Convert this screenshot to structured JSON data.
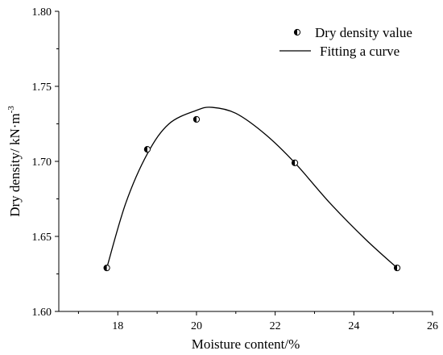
{
  "chart_data": {
    "type": "scatter",
    "title": "",
    "xlabel": "Moisture content/%",
    "ylabel_prefix": "Dry density/ kN·m",
    "ylabel_exponent": "-3",
    "xlim": [
      16.5,
      26
    ],
    "ylim": [
      1.6,
      1.8
    ],
    "xticks": [
      18,
      20,
      22,
      24,
      26
    ],
    "xtick_labels": [
      "18",
      "20",
      "22",
      "24",
      "26"
    ],
    "yticks": [
      1.6,
      1.65,
      1.7,
      1.75,
      1.8
    ],
    "ytick_labels": [
      "1.60",
      "1.65",
      "1.70",
      "1.75",
      "1.80"
    ],
    "grid": false,
    "legend_position": "top-right",
    "series": [
      {
        "name": "Dry density value",
        "kind": "scatter",
        "marker": "half-filled-circle",
        "x": [
          17.72,
          18.75,
          20.0,
          22.5,
          25.1
        ],
        "y": [
          1.629,
          1.708,
          1.728,
          1.699,
          1.629
        ]
      },
      {
        "name": "Fitting a curve",
        "kind": "line",
        "color": "#000000",
        "x": [
          17.72,
          18.2,
          18.75,
          19.3,
          20.0,
          20.4,
          21.0,
          21.75,
          22.5,
          23.4,
          24.3,
          25.1
        ],
        "y": [
          1.629,
          1.672,
          1.705,
          1.725,
          1.734,
          1.736,
          1.732,
          1.718,
          1.699,
          1.672,
          1.648,
          1.629
        ]
      }
    ]
  }
}
